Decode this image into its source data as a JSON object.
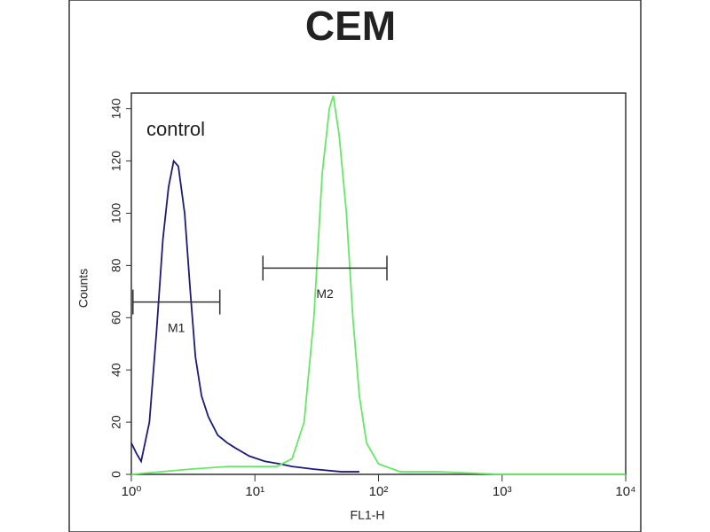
{
  "chart_data": {
    "type": "line",
    "title": "CEM",
    "x_label": "FL1-H",
    "y_label": "Counts",
    "annotation": "control",
    "xscale": "log",
    "xlim": [
      1,
      10000
    ],
    "ylim": [
      0,
      146
    ],
    "xticks": [
      {
        "value": 1,
        "label": "10⁰"
      },
      {
        "value": 10,
        "label": "10¹"
      },
      {
        "value": 100,
        "label": "10²"
      },
      {
        "value": 1000,
        "label": "10³"
      },
      {
        "value": 10000,
        "label": "10⁴"
      }
    ],
    "yticks": [
      0,
      20,
      40,
      60,
      80,
      100,
      120,
      140
    ],
    "series": [
      {
        "color": "#1c1c78",
        "x": [
          1.0,
          1.1,
          1.2,
          1.4,
          1.6,
          1.8,
          2.0,
          2.2,
          2.4,
          2.7,
          3.0,
          3.3,
          3.7,
          4.2,
          5,
          6,
          7,
          9,
          12,
          16,
          20,
          30,
          50,
          70
        ],
        "values": [
          12,
          8,
          5,
          20,
          55,
          90,
          110,
          120,
          118,
          100,
          70,
          45,
          30,
          22,
          15,
          12,
          10,
          7,
          5,
          4,
          3,
          2,
          1,
          1
        ]
      },
      {
        "color": "#66e866",
        "x": [
          1,
          3,
          6,
          10,
          15,
          20,
          25,
          30,
          35,
          40,
          43,
          48,
          55,
          62,
          70,
          80,
          100,
          150,
          300,
          1000,
          10000
        ],
        "values": [
          0,
          2,
          3,
          3,
          3,
          6,
          20,
          60,
          115,
          140,
          145,
          130,
          100,
          60,
          30,
          12,
          4,
          1,
          1,
          0,
          0
        ]
      }
    ],
    "markers": [
      {
        "label": "M1",
        "x": [
          1.03,
          5.2
        ],
        "y": 66
      },
      {
        "label": "M2",
        "x": [
          11.6,
          117
        ],
        "y": 79
      }
    ]
  }
}
